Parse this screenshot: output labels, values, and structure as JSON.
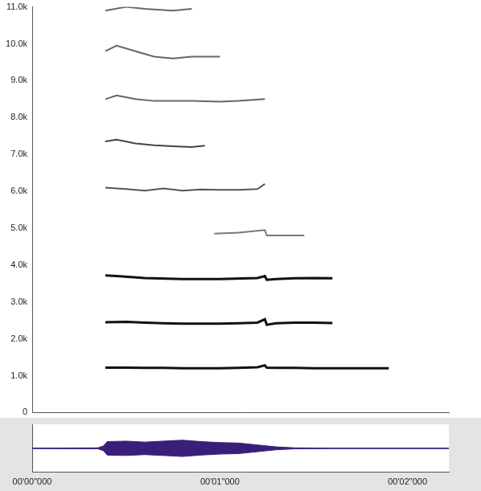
{
  "chart_data": [
    {
      "type": "line",
      "xlim": [
        0,
        2.22
      ],
      "ylim": [
        0,
        11000
      ],
      "yticks": [
        0,
        {
          "value": 1000,
          "label": "1.0k"
        },
        {
          "value": 2000,
          "label": "2.0k"
        },
        {
          "value": 3000,
          "label": "3.0k"
        },
        {
          "value": 4000,
          "label": "4.0k"
        },
        {
          "value": 5000,
          "label": "5.0k"
        },
        {
          "value": 6000,
          "label": "6.0k"
        },
        {
          "value": 7000,
          "label": "7.0k"
        },
        {
          "value": 8000,
          "label": "8.0k"
        },
        {
          "value": 9000,
          "label": "9.0k"
        },
        {
          "value": 10000,
          "label": "10.0k"
        },
        {
          "value": 11000,
          "label": "11.0k"
        }
      ],
      "tick_labels": "y",
      "grid": false,
      "series": [
        {
          "color": "#111111",
          "x": [
            0.39,
            0.5,
            0.6,
            0.7,
            0.8,
            0.9,
            1.0,
            1.1,
            1.2,
            1.24,
            1.25,
            1.3,
            1.4,
            1.5,
            1.6,
            1.7,
            1.8,
            1.9
          ],
          "values": [
            1220,
            1220,
            1210,
            1210,
            1200,
            1200,
            1200,
            1210,
            1230,
            1280,
            1220,
            1210,
            1210,
            1200,
            1200,
            1200,
            1200,
            1200
          ]
        },
        {
          "color": "#111111",
          "x": [
            0.39,
            0.5,
            0.6,
            0.7,
            0.8,
            0.9,
            1.0,
            1.1,
            1.2,
            1.24,
            1.25,
            1.3,
            1.4,
            1.5,
            1.6
          ],
          "values": [
            2450,
            2460,
            2440,
            2420,
            2410,
            2410,
            2410,
            2420,
            2440,
            2530,
            2380,
            2420,
            2440,
            2440,
            2430
          ]
        },
        {
          "color": "#111111",
          "x": [
            0.39,
            0.45,
            0.6,
            0.8,
            1.0,
            1.2,
            1.24,
            1.25,
            1.3,
            1.4,
            1.5,
            1.6
          ],
          "values": [
            3720,
            3700,
            3650,
            3620,
            3620,
            3650,
            3700,
            3600,
            3620,
            3640,
            3650,
            3640
          ]
        },
        {
          "color": "#777777",
          "x": [
            0.97,
            1.1,
            1.24,
            1.25,
            1.35,
            1.45
          ],
          "values": [
            4850,
            4880,
            4950,
            4800,
            4800,
            4800
          ]
        },
        {
          "color": "#555555",
          "x": [
            0.39,
            0.5,
            0.6,
            0.7,
            0.8,
            0.9,
            1.0,
            1.1,
            1.2,
            1.24
          ],
          "values": [
            6100,
            6060,
            6020,
            6080,
            6020,
            6050,
            6040,
            6040,
            6060,
            6200
          ]
        },
        {
          "color": "#444444",
          "x": [
            0.39,
            0.45,
            0.55,
            0.65,
            0.75,
            0.85,
            0.92
          ],
          "values": [
            7350,
            7400,
            7300,
            7250,
            7220,
            7200,
            7240
          ]
        },
        {
          "color": "#666666",
          "x": [
            0.39,
            0.45,
            0.55,
            0.65,
            0.75,
            0.85,
            1.0,
            1.1,
            1.24
          ],
          "values": [
            8500,
            8600,
            8500,
            8450,
            8450,
            8450,
            8430,
            8450,
            8500
          ]
        },
        {
          "color": "#666666",
          "x": [
            0.39,
            0.45,
            0.55,
            0.65,
            0.75,
            0.85,
            0.95,
            1.0
          ],
          "values": [
            9800,
            9950,
            9800,
            9650,
            9600,
            9650,
            9650,
            9650
          ]
        },
        {
          "color": "#666666",
          "x": [
            0.39,
            0.5,
            0.6,
            0.75,
            0.85
          ],
          "values": [
            10900,
            11000,
            10950,
            10900,
            10950
          ]
        }
      ]
    },
    {
      "type": "line",
      "xlim": [
        0,
        2.22
      ],
      "ylim": [
        -1,
        1
      ],
      "xticks": [
        {
          "value": 0,
          "label": "00'00\"000"
        },
        {
          "value": 1,
          "label": "00'01\"000"
        },
        {
          "value": 2,
          "label": "00'02\"000"
        }
      ],
      "tick_labels": "x",
      "grid": false,
      "series": [
        {
          "color": "#3b1e7a",
          "x": [
            0,
            0.35,
            0.38,
            0.4,
            0.5,
            0.6,
            0.7,
            0.8,
            0.9,
            1.0,
            1.1,
            1.2,
            1.3,
            1.4,
            1.6,
            2.22
          ],
          "values": [
            0.01,
            0.02,
            0.1,
            0.28,
            0.3,
            0.26,
            0.3,
            0.34,
            0.28,
            0.24,
            0.22,
            0.14,
            0.06,
            0.02,
            0.01,
            0.01
          ]
        },
        {
          "color": "#3b1e7a",
          "x": [
            0,
            0.35,
            0.38,
            0.4,
            0.5,
            0.6,
            0.7,
            0.8,
            0.9,
            1.0,
            1.1,
            1.2,
            1.3,
            1.4,
            1.6,
            2.22
          ],
          "values": [
            -0.01,
            -0.02,
            -0.1,
            -0.28,
            -0.3,
            -0.26,
            -0.3,
            -0.34,
            -0.28,
            -0.24,
            -0.22,
            -0.14,
            -0.06,
            -0.02,
            -0.01,
            -0.01
          ]
        }
      ]
    }
  ]
}
